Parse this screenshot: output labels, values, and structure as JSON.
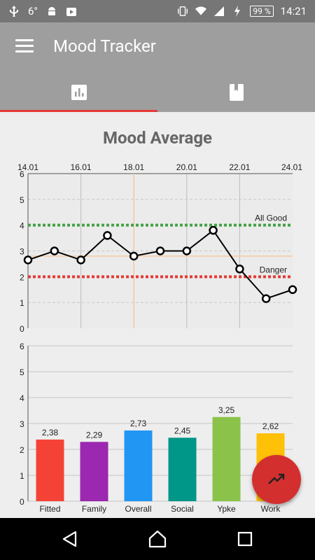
{
  "status_bar": {
    "left_text": "6°",
    "battery": "99 %",
    "time": "14:21",
    "icons": [
      "usb-icon",
      "android-icon",
      "play-store-icon",
      "vibrate-icon",
      "wifi-icon",
      "signal-icon",
      "charging-icon",
      "battery-icon"
    ]
  },
  "app_bar": {
    "title": "Mood Tracker",
    "menu_icon": "hamburger-menu-icon"
  },
  "tabs": [
    {
      "icon": "bar-chart-icon",
      "selected": true
    },
    {
      "icon": "book-icon",
      "selected": false
    }
  ],
  "colors": {
    "accent": "#e53935",
    "app_bar": "#9e9e9e",
    "good_line": "#43a047",
    "danger_line": "#e53935"
  },
  "main": {
    "title": "Mood Average"
  },
  "fab": {
    "icon": "trending-up-icon"
  },
  "nav_bar": {
    "icons": [
      "back-icon",
      "home-icon",
      "recents-icon"
    ]
  },
  "chart_data": [
    {
      "type": "line",
      "title": "Mood Average",
      "x_ticks": [
        "14.01",
        "16.01",
        "18.01",
        "20.01",
        "22.01",
        "24.01"
      ],
      "x": [
        "14.01",
        "15.01",
        "16.01",
        "17.01",
        "18.01",
        "19.01",
        "20.01",
        "21.01",
        "22.01",
        "23.01",
        "24.01"
      ],
      "values": [
        2.65,
        3.0,
        2.65,
        3.6,
        2.8,
        3.0,
        3.0,
        3.8,
        2.3,
        1.15,
        1.5
      ],
      "ylim": [
        0,
        6
      ],
      "y_ticks": [
        "0",
        "1",
        "2",
        "3",
        "4",
        "5",
        "6"
      ],
      "reference_lines": [
        {
          "label": "All Good",
          "value": 4
        },
        {
          "label": "Danger",
          "value": 2
        }
      ],
      "grid": true
    },
    {
      "type": "bar",
      "categories": [
        "Fitted",
        "Family",
        "Overall",
        "Social",
        "Ypke",
        "Work"
      ],
      "values": [
        2.38,
        2.29,
        2.73,
        2.45,
        3.25,
        2.62
      ],
      "value_labels": [
        "2,38",
        "2,29",
        "2,73",
        "2,45",
        "3,25",
        "2,62"
      ],
      "colors": [
        "#f44336",
        "#9c27b0",
        "#2196f3",
        "#009688",
        "#8bc34a",
        "#ffc107"
      ],
      "ylim": [
        0,
        6
      ],
      "y_ticks": [
        "0",
        "1",
        "2",
        "3",
        "4",
        "5",
        "6"
      ],
      "grid": true
    }
  ]
}
